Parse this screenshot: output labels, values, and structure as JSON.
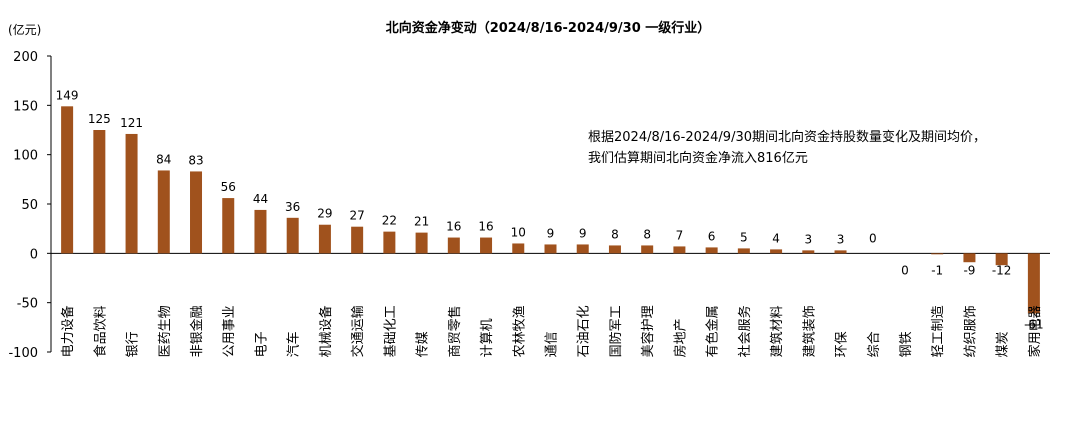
{
  "chart_data": {
    "type": "bar",
    "title": "北向资金净变动（2024/8/16-2024/9/30 一级行业）",
    "unit": "(亿元)",
    "ylim": [
      -100,
      200
    ],
    "yticks": [
      200,
      150,
      100,
      50,
      0,
      -50,
      -100
    ],
    "grid": false,
    "bar_color": "#A0521D",
    "categories": [
      "电力设备",
      "食品饮料",
      "银行",
      "医药生物",
      "非银金融",
      "公用事业",
      "电子",
      "汽车",
      "机械设备",
      "交通运输",
      "基础化工",
      "传媒",
      "商贸零售",
      "计算机",
      "农林牧渔",
      "通信",
      "石油石化",
      "国防军工",
      "美容护理",
      "房地产",
      "有色金属",
      "社会服务",
      "建筑材料",
      "建筑装饰",
      "环保",
      "综合",
      "钢铁",
      "轻工制造",
      "纺织服饰",
      "煤炭",
      "家用电器"
    ],
    "values": [
      149,
      125,
      121,
      84,
      83,
      56,
      44,
      36,
      29,
      27,
      22,
      21,
      16,
      16,
      10,
      9,
      9,
      8,
      8,
      7,
      6,
      5,
      4,
      3,
      3,
      0,
      0,
      -1,
      -9,
      -12,
      -61
    ],
    "annotation": {
      "line1": "根据2024/8/16-2024/9/30期间北向资金持股数量变化及期间均价，",
      "line2": "我们估算期间北向资金净流入816亿元"
    }
  }
}
